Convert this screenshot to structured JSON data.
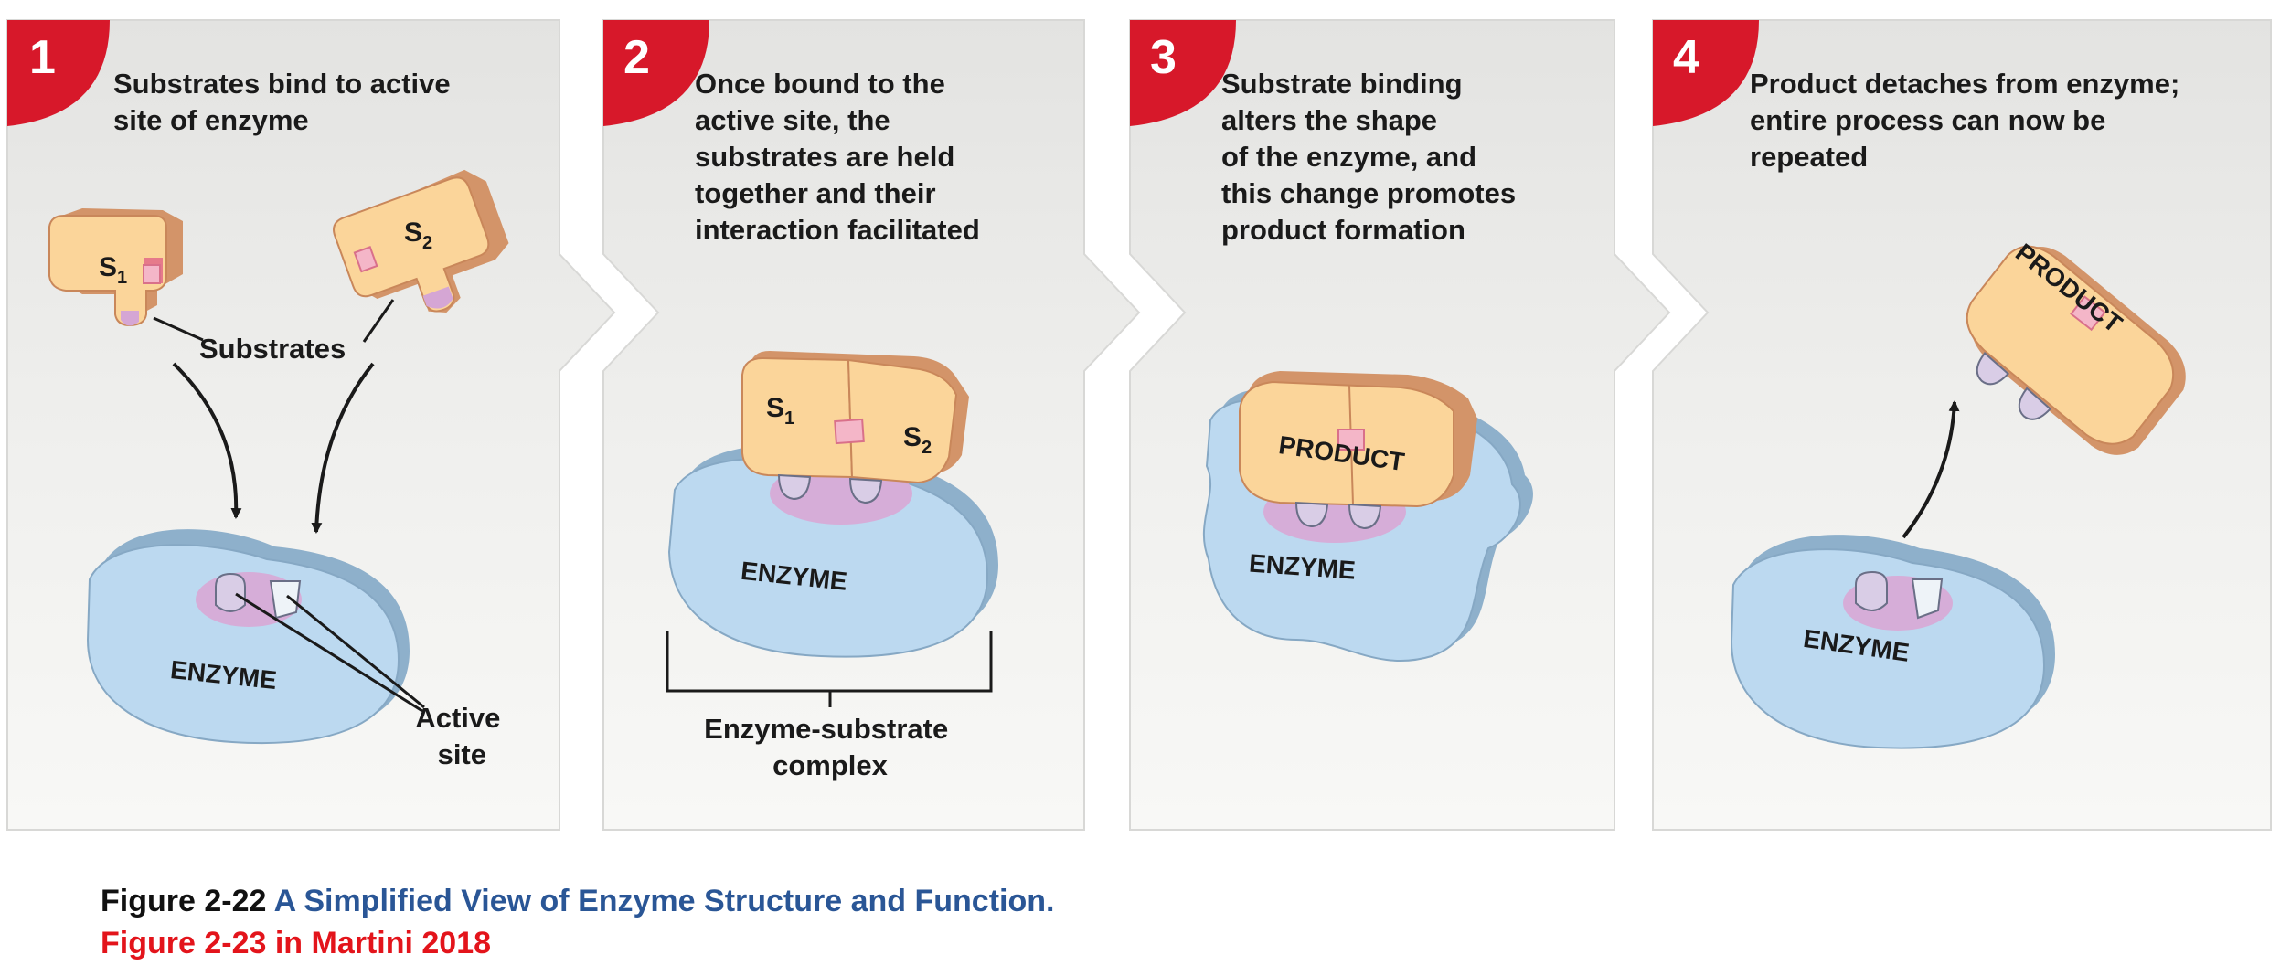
{
  "steps": [
    {
      "number": "1",
      "lines": [
        "Substrates bind to active",
        "site of enzyme"
      ],
      "s1_main": "S",
      "s1_sub": "1",
      "s2_main": "S",
      "s2_sub": "2",
      "substrates_label": "Substrates",
      "enzyme_label": "ENZYME",
      "active_site_lines": [
        "Active",
        "site"
      ]
    },
    {
      "number": "2",
      "lines": [
        "Once bound to the",
        "active site, the",
        "substrates are held",
        "together and their",
        "interaction facilitated"
      ],
      "s1_main": "S",
      "s1_sub": "1",
      "s2_main": "S",
      "s2_sub": "2",
      "enzyme_label": "ENZYME",
      "complex_lines": [
        "Enzyme-substrate",
        "complex"
      ]
    },
    {
      "number": "3",
      "lines": [
        "Substrate binding",
        "alters the shape",
        "of the enzyme, and",
        "this change promotes",
        "product formation"
      ],
      "product_label": "PRODUCT",
      "enzyme_label": "ENZYME"
    },
    {
      "number": "4",
      "lines": [
        "Product detaches from enzyme;",
        "entire process can now be",
        "repeated"
      ],
      "product_label": "PRODUCT",
      "enzyme_label": "ENZYME"
    }
  ],
  "caption": {
    "figure_number": "Figure 2-22",
    "figure_title": "A Simplified View of Enzyme Structure and Function.",
    "note": "Figure 2-23 in Martini 2018"
  },
  "colors": {
    "badge": "#d7182a",
    "panel_top": "#e6e6e4",
    "panel_bottom": "#f7f7f5",
    "enzyme": "#bcd9f0",
    "enzyme_edge": "#90b4cf",
    "substrate": "#fbd59a",
    "substrate_side": "#e3a676",
    "active_site_glow": "#d9a3d0",
    "caption_title": "#2a5696",
    "caption_note": "#e3141b"
  }
}
